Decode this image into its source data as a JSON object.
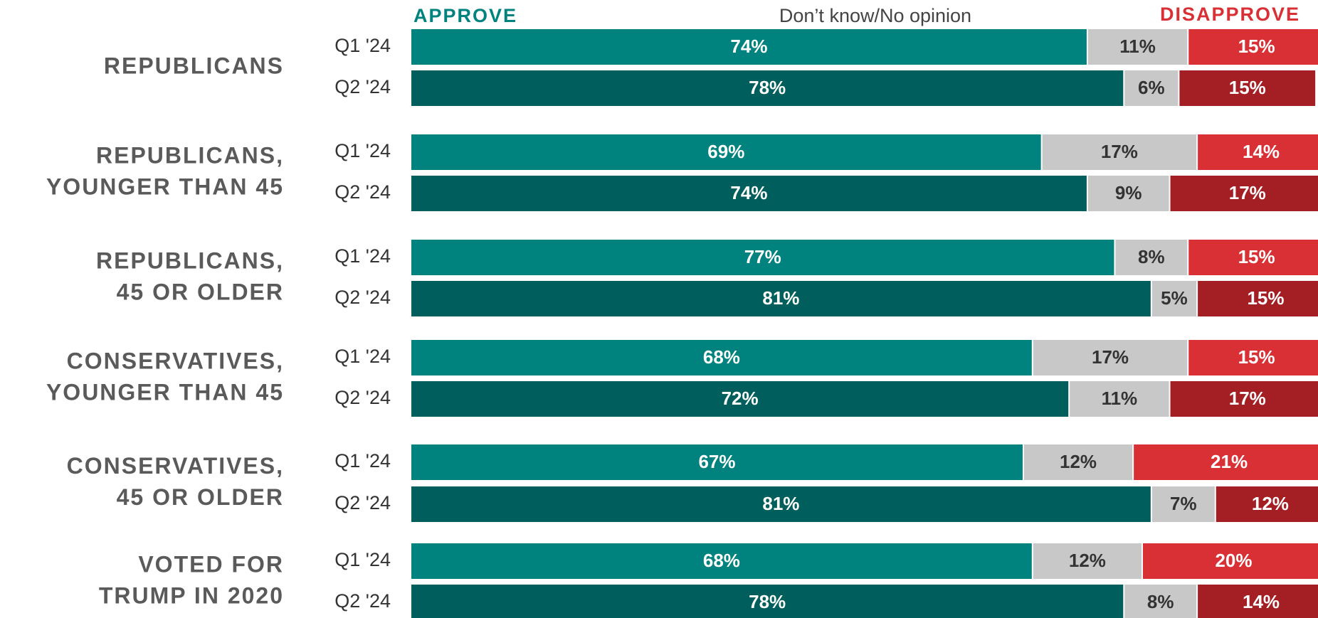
{
  "chart_data": {
    "type": "stacked-bar-horizontal",
    "groups": [
      [
        "REPUBLICANS"
      ],
      [
        "REPUBLICANS,",
        "YOUNGER THAN 45"
      ],
      [
        "REPUBLICANS,",
        "45 OR OLDER"
      ],
      [
        "CONSERVATIVES,",
        "YOUNGER THAN 45"
      ],
      [
        "CONSERVATIVES,",
        "45 OR OLDER"
      ],
      [
        "VOTED FOR",
        "TRUMP IN 2020"
      ]
    ],
    "categories": [
      "Q1 '24",
      "Q2 '24",
      "Q1 '24",
      "Q2 '24",
      "Q1 '24",
      "Q2 '24",
      "Q1 '24",
      "Q2 '24",
      "Q1 '24",
      "Q2 '24",
      "Q1 '24",
      "Q2 '24"
    ],
    "xlim": [
      0,
      100
    ],
    "series": [
      {
        "name": "APPROVE",
        "legend_color": "#00827f",
        "colors": [
          "#00827f",
          "#005f5c"
        ],
        "label_color": "#ffffff",
        "values": [
          74,
          78,
          69,
          74,
          77,
          81,
          68,
          72,
          67,
          81,
          68,
          78
        ],
        "value_labels": [
          "74%",
          "78%",
          "69%",
          "74%",
          "77%",
          "81%",
          "68%",
          "72%",
          "67%",
          "81%",
          "68%",
          "78%"
        ]
      },
      {
        "name": "Don’t know/No opinion",
        "legend_color": "#444444",
        "colors": [
          "#c8c8c8",
          "#c8c8c8"
        ],
        "label_color": "#333333",
        "values": [
          11,
          6,
          17,
          9,
          8,
          5,
          17,
          11,
          12,
          7,
          12,
          8
        ],
        "value_labels": [
          "11%",
          "6%",
          "17%",
          "9%",
          "8%",
          "5%",
          "17%",
          "11%",
          "12%",
          "7%",
          "12%",
          "8%"
        ]
      },
      {
        "name": "DISAPPROVE",
        "legend_color": "#d93036",
        "colors": [
          "#d93036",
          "#a31f24"
        ],
        "label_color": "#ffffff",
        "values": [
          15,
          15,
          14,
          17,
          15,
          15,
          15,
          17,
          21,
          12,
          20,
          14
        ],
        "value_labels": [
          "15%",
          "15%",
          "14%",
          "17%",
          "15%",
          "15%",
          "15%",
          "17%",
          "21%",
          "12%",
          "20%",
          "14%"
        ]
      }
    ]
  }
}
